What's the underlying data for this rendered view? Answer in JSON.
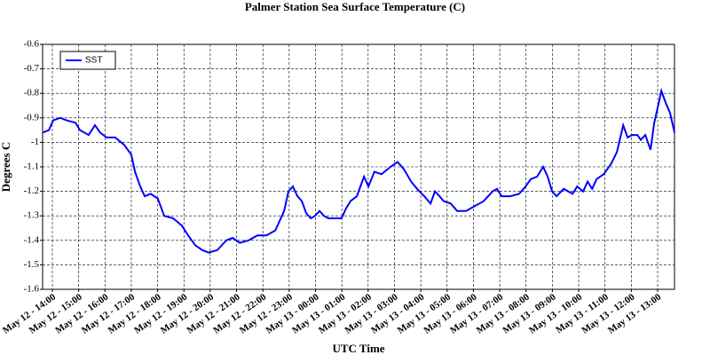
{
  "chart_data": {
    "type": "line",
    "title": "Palmer Station Sea Surface Temperature (C)",
    "x_label": "UTC Time",
    "y_label": "Degrees C",
    "legend": "upper left",
    "grid": true,
    "xlim": [
      13.63,
      37.64
    ],
    "ylim": [
      -1.6,
      -0.6
    ],
    "yticks": [
      -1.6,
      -1.5,
      -1.4,
      -1.3,
      -1.2,
      -1.1,
      -1,
      -0.9,
      -0.8,
      -0.7,
      -0.6
    ],
    "xticks": [
      {
        "value": 14,
        "label": "May 12 - 14:00"
      },
      {
        "value": 15,
        "label": "May 12 - 15:00"
      },
      {
        "value": 16,
        "label": "May 12 - 16:00"
      },
      {
        "value": 17,
        "label": "May 12 - 17:00"
      },
      {
        "value": 18,
        "label": "May 12 - 18:00"
      },
      {
        "value": 19,
        "label": "May 12 - 19:00"
      },
      {
        "value": 20,
        "label": "May 12 - 20:00"
      },
      {
        "value": 21,
        "label": "May 12 - 21:00"
      },
      {
        "value": 22,
        "label": "May 12 - 22:00"
      },
      {
        "value": 23,
        "label": "May 12 - 23:00"
      },
      {
        "value": 24,
        "label": "May 13 - 00:00"
      },
      {
        "value": 25,
        "label": "May 13 - 01:00"
      },
      {
        "value": 26,
        "label": "May 13 - 02:00"
      },
      {
        "value": 27,
        "label": "May 13 - 03:00"
      },
      {
        "value": 28,
        "label": "May 13 - 04:00"
      },
      {
        "value": 29,
        "label": "May 13 - 05:00"
      },
      {
        "value": 30,
        "label": "May 13 - 06:00"
      },
      {
        "value": 31,
        "label": "May 13 - 07:00"
      },
      {
        "value": 32,
        "label": "May 13 - 08:00"
      },
      {
        "value": 33,
        "label": "May 13 - 09:00"
      },
      {
        "value": 34,
        "label": "May 13 - 10:00"
      },
      {
        "value": 35,
        "label": "May 13 - 11:00"
      },
      {
        "value": 36,
        "label": "May 13 - 12:00"
      },
      {
        "value": 37,
        "label": "May 13 - 13:00"
      }
    ],
    "x": [
      13.63,
      13.87,
      14.03,
      14.3,
      14.54,
      14.88,
      15.05,
      15.38,
      15.62,
      15.82,
      16.06,
      16.39,
      16.73,
      17.0,
      17.14,
      17.34,
      17.51,
      17.74,
      18.01,
      18.25,
      18.59,
      18.92,
      19.16,
      19.43,
      19.7,
      19.94,
      20.27,
      20.61,
      20.85,
      21.12,
      21.46,
      21.79,
      22.13,
      22.47,
      22.81,
      22.97,
      23.14,
      23.31,
      23.48,
      23.65,
      23.82,
      23.98,
      24.15,
      24.32,
      24.49,
      24.76,
      24.99,
      25.16,
      25.33,
      25.57,
      25.84,
      26.01,
      26.24,
      26.51,
      26.85,
      27.12,
      27.36,
      27.63,
      27.86,
      28.13,
      28.37,
      28.54,
      28.71,
      28.87,
      29.14,
      29.38,
      29.72,
      30.05,
      30.39,
      30.73,
      30.9,
      31.07,
      31.4,
      31.74,
      31.98,
      32.18,
      32.42,
      32.65,
      32.82,
      32.99,
      33.16,
      33.43,
      33.77,
      33.94,
      34.17,
      34.34,
      34.51,
      34.68,
      34.95,
      35.22,
      35.45,
      35.69,
      35.86,
      36.03,
      36.23,
      36.36,
      36.53,
      36.73,
      36.87,
      37.04,
      37.14,
      37.31,
      37.47,
      37.64
    ],
    "series": [
      {
        "name": "SST",
        "color": "#0000ff",
        "values": [
          -0.96,
          -0.95,
          -0.91,
          -0.9,
          -0.91,
          -0.92,
          -0.95,
          -0.97,
          -0.93,
          -0.96,
          -0.98,
          -0.98,
          -1.01,
          -1.05,
          -1.12,
          -1.18,
          -1.22,
          -1.21,
          -1.23,
          -1.3,
          -1.31,
          -1.34,
          -1.38,
          -1.42,
          -1.44,
          -1.45,
          -1.44,
          -1.4,
          -1.39,
          -1.41,
          -1.4,
          -1.38,
          -1.38,
          -1.36,
          -1.28,
          -1.2,
          -1.18,
          -1.22,
          -1.24,
          -1.29,
          -1.31,
          -1.3,
          -1.28,
          -1.3,
          -1.31,
          -1.31,
          -1.31,
          -1.27,
          -1.24,
          -1.22,
          -1.14,
          -1.18,
          -1.12,
          -1.13,
          -1.1,
          -1.08,
          -1.11,
          -1.16,
          -1.19,
          -1.22,
          -1.25,
          -1.2,
          -1.22,
          -1.24,
          -1.25,
          -1.28,
          -1.28,
          -1.26,
          -1.24,
          -1.2,
          -1.19,
          -1.22,
          -1.22,
          -1.21,
          -1.18,
          -1.15,
          -1.14,
          -1.1,
          -1.14,
          -1.2,
          -1.22,
          -1.19,
          -1.21,
          -1.18,
          -1.2,
          -1.16,
          -1.19,
          -1.15,
          -1.13,
          -1.09,
          -1.04,
          -0.93,
          -0.98,
          -0.97,
          -0.97,
          -0.99,
          -0.97,
          -1.03,
          -0.92,
          -0.84,
          -0.79,
          -0.84,
          -0.88,
          -0.96
        ]
      }
    ]
  }
}
